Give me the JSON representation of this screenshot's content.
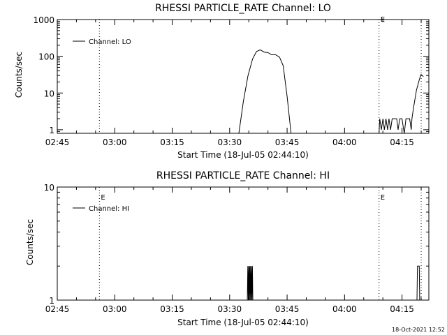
{
  "chart_data": [
    {
      "type": "line",
      "title": "RHESSI PARTICLE_RATE Channel: LO",
      "xlabel": "Start Time (18-Jul-05 02:44:10)",
      "ylabel": "Counts/sec",
      "yscale": "log",
      "ylim": [
        0.8,
        1000
      ],
      "xlim": [
        "02:45",
        "04:22"
      ],
      "xticks": [
        "02:45",
        "03:00",
        "03:15",
        "03:30",
        "03:45",
        "04:00",
        "04:15"
      ],
      "yticks": [
        "1",
        "10",
        "100",
        "1000"
      ],
      "legend": {
        "position": "top-left",
        "entries": [
          "Channel: LO"
        ]
      },
      "vlines": [
        {
          "x": "02:56",
          "label": "",
          "style": "dotted"
        },
        {
          "x": "04:09",
          "label": "E",
          "style": "dotted"
        },
        {
          "x": "04:20",
          "label": "",
          "style": "dotted"
        }
      ],
      "series": [
        {
          "name": "Channel: LO",
          "segments": [
            [
              [
                3.54,
                0.8
              ],
              [
                3.56,
                6
              ],
              [
                3.58,
                30
              ],
              [
                3.6,
                85
              ],
              [
                3.617,
                135
              ],
              [
                3.633,
                150
              ],
              [
                3.65,
                130
              ],
              [
                3.667,
                125
              ],
              [
                3.683,
                110
              ],
              [
                3.7,
                110
              ],
              [
                3.717,
                95
              ],
              [
                3.733,
                55
              ],
              [
                3.75,
                8
              ],
              [
                3.767,
                0.8
              ]
            ],
            [
              [
                4.15,
                0.8
              ],
              [
                4.153,
                2
              ],
              [
                4.16,
                1
              ],
              [
                4.167,
                2
              ],
              [
                4.173,
                1
              ],
              [
                4.18,
                2
              ],
              [
                4.187,
                1
              ],
              [
                4.193,
                2
              ],
              [
                4.2,
                1
              ],
              [
                4.207,
                2
              ],
              [
                4.227,
                2
              ],
              [
                4.233,
                1
              ],
              [
                4.24,
                2
              ],
              [
                4.25,
                2
              ],
              [
                4.257,
                1
              ],
              [
                4.26,
                0.8
              ]
            ],
            [
              [
                4.26,
                0.8
              ],
              [
                4.267,
                2
              ],
              [
                4.283,
                2
              ],
              [
                4.29,
                1
              ],
              [
                4.293,
                2
              ],
              [
                4.3,
                4
              ],
              [
                4.313,
                12
              ],
              [
                4.327,
                25
              ],
              [
                4.333,
                32
              ],
              [
                4.343,
                28
              ]
            ]
          ]
        }
      ]
    },
    {
      "type": "line",
      "title": "RHESSI PARTICLE_RATE Channel: HI",
      "xlabel": "Start Time (18-Jul-05 02:44:10)",
      "ylabel": "Counts/sec",
      "yscale": "log",
      "ylim": [
        1,
        10
      ],
      "xlim": [
        "02:45",
        "04:22"
      ],
      "xticks": [
        "02:45",
        "03:00",
        "03:15",
        "03:30",
        "03:45",
        "04:00",
        "04:15"
      ],
      "yticks": [
        "1",
        "10"
      ],
      "legend": {
        "position": "top-left",
        "entries": [
          "Channel: HI"
        ]
      },
      "vlines": [
        {
          "x": "02:56",
          "label": "E",
          "style": "dotted"
        },
        {
          "x": "04:09",
          "label": "E",
          "style": "dotted"
        },
        {
          "x": "04:20",
          "label": "",
          "style": "dotted"
        }
      ],
      "series": [
        {
          "name": "Channel: HI",
          "segments": [
            [
              [
                3.577,
                1
              ],
              [
                3.579,
                2
              ],
              [
                3.581,
                1
              ],
              [
                3.583,
                2
              ],
              [
                3.585,
                1
              ],
              [
                3.587,
                2
              ],
              [
                3.589,
                1
              ],
              [
                3.591,
                2
              ],
              [
                3.593,
                1
              ],
              [
                3.595,
                2
              ],
              [
                3.597,
                1
              ],
              [
                3.599,
                2
              ],
              [
                3.601,
                1
              ]
            ],
            [
              [
                4.315,
                1
              ],
              [
                4.317,
                2
              ],
              [
                4.325,
                2
              ],
              [
                4.327,
                1
              ]
            ]
          ]
        }
      ]
    }
  ],
  "footer": {
    "timestamp": "18-Oct-2021 12:52"
  }
}
